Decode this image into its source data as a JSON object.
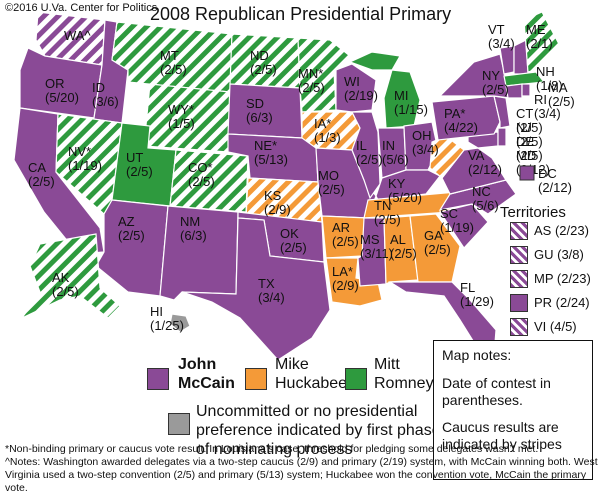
{
  "copyright": "©2016 U.Va. Center for Politics",
  "title": "2008 Republican Presidential Primary",
  "colors": {
    "mccain": "#8a4a96",
    "huckabee": "#f49a38",
    "romney": "#2e9a3e",
    "uncommitted": "#9a9a9a",
    "border": "#ffffff"
  },
  "states": [
    {
      "abbr": "WA^",
      "date": "",
      "winner": "mccain",
      "caucus": true
    },
    {
      "abbr": "OR",
      "date": "(5/20)",
      "winner": "mccain",
      "caucus": false
    },
    {
      "abbr": "CA",
      "date": "(2/5)",
      "winner": "mccain",
      "caucus": false
    },
    {
      "abbr": "ID",
      "date": "(3/6)",
      "winner": "mccain",
      "caucus": false
    },
    {
      "abbr": "NV*",
      "date": "(1/19)",
      "winner": "romney",
      "caucus": true
    },
    {
      "abbr": "MT",
      "date": "(2/5)",
      "winner": "romney",
      "caucus": true
    },
    {
      "abbr": "WY*",
      "date": "(1/5)",
      "winner": "romney",
      "caucus": true
    },
    {
      "abbr": "UT",
      "date": "(2/5)",
      "winner": "romney",
      "caucus": false
    },
    {
      "abbr": "CO*",
      "date": "(2/5)",
      "winner": "romney",
      "caucus": true
    },
    {
      "abbr": "AZ",
      "date": "(2/5)",
      "winner": "mccain",
      "caucus": false
    },
    {
      "abbr": "NM",
      "date": "(6/3)",
      "winner": "mccain",
      "caucus": false
    },
    {
      "abbr": "ND",
      "date": "(2/5)",
      "winner": "romney",
      "caucus": true
    },
    {
      "abbr": "SD",
      "date": "(6/3)",
      "winner": "mccain",
      "caucus": false
    },
    {
      "abbr": "NE*",
      "date": "(5/13)",
      "winner": "mccain",
      "caucus": false
    },
    {
      "abbr": "KS",
      "date": "(2/9)",
      "winner": "huckabee",
      "caucus": true
    },
    {
      "abbr": "OK",
      "date": "(2/5)",
      "winner": "mccain",
      "caucus": false
    },
    {
      "abbr": "TX",
      "date": "(3/4)",
      "winner": "mccain",
      "caucus": false
    },
    {
      "abbr": "MN*",
      "date": "(2/5)",
      "winner": "romney",
      "caucus": true
    },
    {
      "abbr": "IA*",
      "date": "(1/3)",
      "winner": "huckabee",
      "caucus": true
    },
    {
      "abbr": "MO",
      "date": "(2/5)",
      "winner": "mccain",
      "caucus": false
    },
    {
      "abbr": "AR",
      "date": "(2/5)",
      "winner": "huckabee",
      "caucus": false
    },
    {
      "abbr": "LA*",
      "date": "(2/9)",
      "winner": "huckabee",
      "caucus": false
    },
    {
      "abbr": "WI",
      "date": "(2/19)",
      "winner": "mccain",
      "caucus": false
    },
    {
      "abbr": "IL",
      "date": "(2/5)",
      "winner": "mccain",
      "caucus": false
    },
    {
      "abbr": "MI",
      "date": "(1/15)",
      "winner": "romney",
      "caucus": false
    },
    {
      "abbr": "IN",
      "date": "(5/6)",
      "winner": "mccain",
      "caucus": false
    },
    {
      "abbr": "OH",
      "date": "(3/4)",
      "winner": "mccain",
      "caucus": false
    },
    {
      "abbr": "KY",
      "date": "(5/20)",
      "winner": "mccain",
      "caucus": false
    },
    {
      "abbr": "TN",
      "date": "(2/5)",
      "winner": "huckabee",
      "caucus": false
    },
    {
      "abbr": "MS",
      "date": "(3/11)",
      "winner": "mccain",
      "caucus": false
    },
    {
      "abbr": "AL",
      "date": "(2/5)",
      "winner": "huckabee",
      "caucus": false
    },
    {
      "abbr": "GA",
      "date": "(2/5)",
      "winner": "huckabee",
      "caucus": false
    },
    {
      "abbr": "FL",
      "date": "(1/29)",
      "winner": "mccain",
      "caucus": false
    },
    {
      "abbr": "SC",
      "date": "(1/19)",
      "winner": "mccain",
      "caucus": false
    },
    {
      "abbr": "NC",
      "date": "(5/6)",
      "winner": "mccain",
      "caucus": false
    },
    {
      "abbr": "VA",
      "date": "(2/12)",
      "winner": "mccain",
      "caucus": false
    },
    {
      "abbr": "WV",
      "date": "",
      "winner": "huckabee",
      "caucus": true
    },
    {
      "abbr": "PA*",
      "date": "(4/22)",
      "winner": "mccain",
      "caucus": false
    },
    {
      "abbr": "NY",
      "date": "(2/5)",
      "winner": "mccain",
      "caucus": false
    },
    {
      "abbr": "VT",
      "date": "(3/4)",
      "winner": "mccain",
      "caucus": false
    },
    {
      "abbr": "ME",
      "date": "(2/1)",
      "winner": "romney",
      "caucus": true
    },
    {
      "abbr": "NH",
      "date": "(1/8)",
      "winner": "mccain",
      "caucus": false
    },
    {
      "abbr": "MA",
      "date": "(2/5)",
      "winner": "romney",
      "caucus": false
    },
    {
      "abbr": "RI",
      "date": "(3/4)",
      "winner": "mccain",
      "caucus": false
    },
    {
      "abbr": "CT",
      "date": "(2/5)",
      "winner": "mccain",
      "caucus": false
    },
    {
      "abbr": "NJ",
      "date": "(2/5)",
      "winner": "mccain",
      "caucus": false
    },
    {
      "abbr": "DE",
      "date": "(2/5)",
      "winner": "mccain",
      "caucus": false
    },
    {
      "abbr": "MD",
      "date": "(2/12)",
      "winner": "mccain",
      "caucus": false
    },
    {
      "abbr": "DC",
      "date": "(2/12)",
      "winner": "mccain",
      "caucus": false
    },
    {
      "abbr": "AK",
      "date": "(2/5)",
      "winner": "romney",
      "caucus": true
    },
    {
      "abbr": "HI",
      "date": "(1/25)",
      "winner": "uncommitted",
      "caucus": false
    }
  ],
  "territories": {
    "heading": "Territories",
    "items": [
      {
        "label": "AS (2/23)",
        "winner": "mccain",
        "caucus": true
      },
      {
        "label": "GU (3/8)",
        "winner": "mccain",
        "caucus": true
      },
      {
        "label": "MP (2/23)",
        "winner": "mccain",
        "caucus": true
      },
      {
        "label": "PR (2/24)",
        "winner": "mccain",
        "caucus": false
      },
      {
        "label": "VI (4/5)",
        "winner": "mccain",
        "caucus": true
      }
    ]
  },
  "legend": {
    "mccain": {
      "line1": "John",
      "line2": "McCain"
    },
    "huckabee": {
      "line1": "Mike",
      "line2": "Huckabee"
    },
    "romney": {
      "line1": "Mitt",
      "line2": "Romney"
    },
    "uncommitted": {
      "line1": "Uncommitted or no presidential",
      "line2": "preference indicated by first phase",
      "line3": "of nominating process"
    }
  },
  "notes": {
    "heading": "Map notes:",
    "line1": "Date of contest in",
    "line2": "parentheses.",
    "line3": "Caucus results are",
    "line4": "indicated by stripes"
  },
  "footnotes": {
    "line1": "*Non-binding primary or caucus vote result. In Louisiana’s case, threshold for pledging some delegates wasn’t met.",
    "line2": "^Notes: Washington awarded delegates via a two-step caucus (2/9) and primary (2/19) system, with McCain winning both. West",
    "line3": "Virginia used a two-step convention (2/5) and primary (5/13) system; Huckabee won the convention vote, McCain the primary vote."
  }
}
